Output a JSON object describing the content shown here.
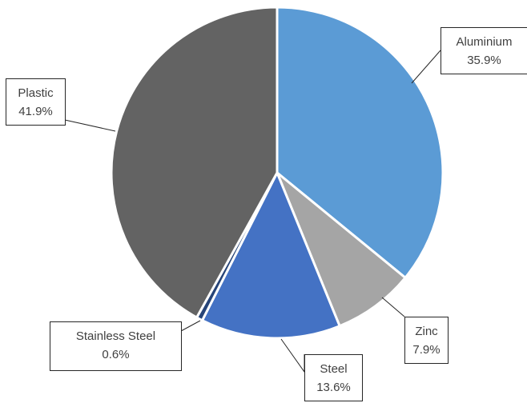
{
  "chart_data": {
    "type": "pie",
    "title": "",
    "slices": [
      {
        "name": "Aluminium",
        "value": 35.9,
        "label": "35.9%",
        "color": "#5b9bd5"
      },
      {
        "name": "Zinc",
        "value": 7.9,
        "label": "7.9%",
        "color": "#a5a5a5"
      },
      {
        "name": "Steel",
        "value": 13.6,
        "label": "13.6%",
        "color": "#4472c4"
      },
      {
        "name": "Stainless Steel",
        "value": 0.6,
        "label": "0.6%",
        "color": "#264478"
      },
      {
        "name": "Plastic",
        "value": 41.9,
        "label": "41.9%",
        "color": "#636363"
      }
    ],
    "start_angle": "12 o'clock",
    "direction": "clockwise",
    "legend": "none",
    "data_labels": "callouts with leader lines"
  }
}
